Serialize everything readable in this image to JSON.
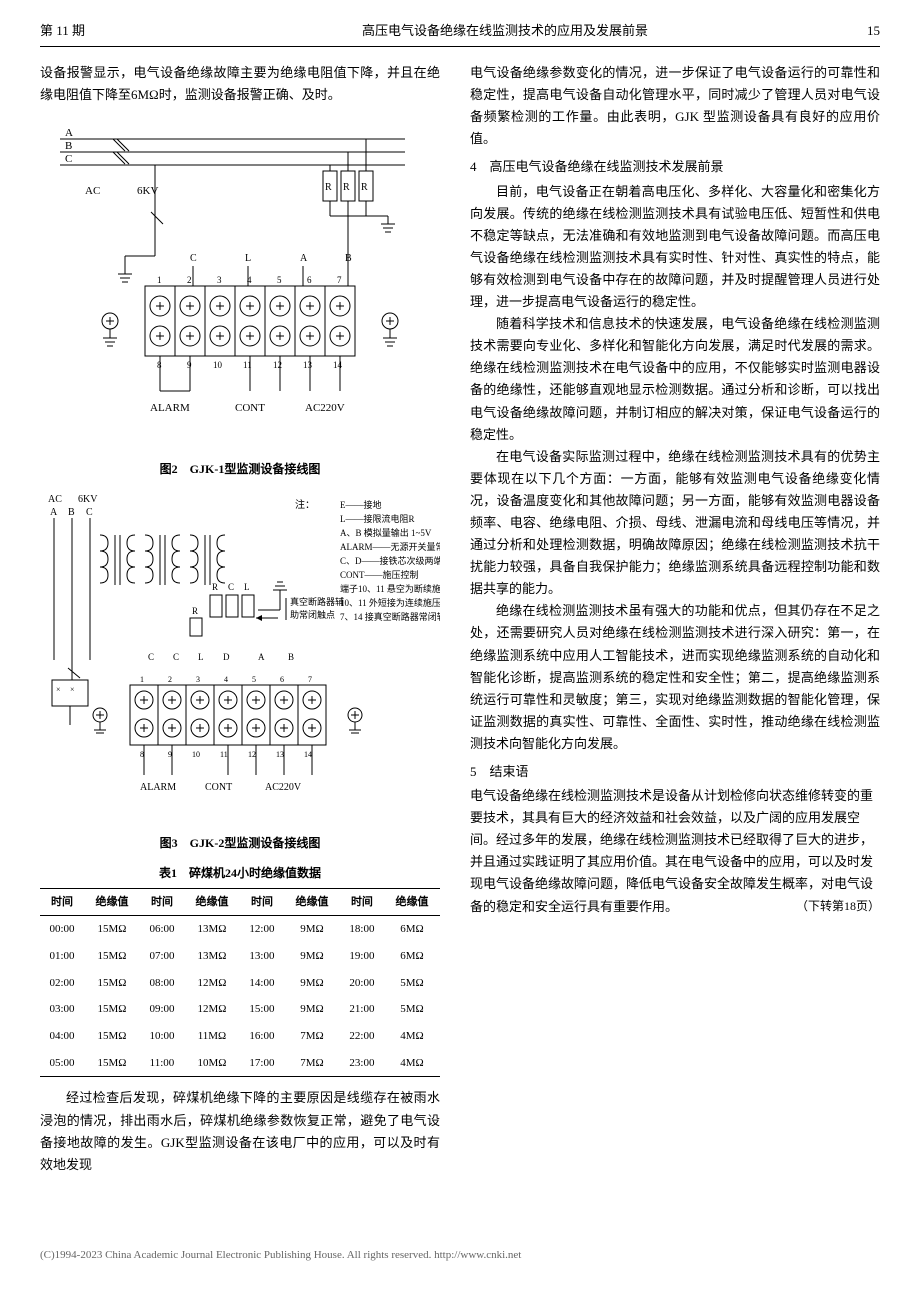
{
  "header": {
    "issue": "第 11 期",
    "title": "高压电气设备绝缘在线监测技术的应用及发展前景",
    "page": "15"
  },
  "left": {
    "intro_para": "设备报警显示，电气设备绝缘故障主要为绝缘电阻值下降，并且在绝缘电阻值下降至6MΩ时，监测设备报警正确、及时。",
    "fig2_caption": "图2　GJK-1型监测设备接线图",
    "fig3_caption": "图3　GJK-2型监测设备接线图",
    "table1_caption": "表1　碎煤机24小时绝缘值数据",
    "conclusion_para": "经过检查后发现，碎煤机绝缘下降的主要原因是线缆存在被雨水浸泡的情况，排出雨水后，碎煤机绝缘参数恢复正常，避免了电气设备接地故障的发生。GJK型监测设备在该电厂中的应用，可以及时有效地发现",
    "fig2": {
      "labels": {
        "A": "A",
        "B": "B",
        "C": "C",
        "AC": "AC",
        "voltage": "6KV",
        "R": "R",
        "CLAB": [
          "C",
          "L",
          "A",
          "B"
        ],
        "nums": [
          "1",
          "2",
          "3",
          "4",
          "5",
          "6",
          "7",
          "8",
          "9",
          "10",
          "11",
          "12",
          "13",
          "14"
        ],
        "alarm": "ALARM",
        "cont": "CONT",
        "ac220v": "AC220V"
      }
    },
    "fig3": {
      "top_labels": [
        "AC",
        "6KV",
        "A",
        "B",
        "C"
      ],
      "note_head": "注：",
      "notes": [
        "E——接地",
        "L——接限流电阻R",
        "A、B 模拟量输出 1~5V",
        "ALARM——无源开关量常开触点",
        "C、D——接铁芯次级两端",
        "CONT——施压控制",
        "端子10、11 悬空为断续施压",
        "10、11 外短接为连续施压",
        "7、14 接真空断路器常闭辅助触点"
      ],
      "vacuum": "真空断路器辅",
      "aux": "助常闭触点",
      "rcl": [
        "R",
        "C",
        "L"
      ],
      "ccldab": [
        "C",
        "C",
        "L",
        "D",
        "A",
        "B"
      ],
      "nums": [
        "1",
        "2",
        "3",
        "4",
        "5",
        "6",
        "7",
        "8",
        "9",
        "10",
        "11",
        "12",
        "13",
        "14"
      ],
      "alarm": "ALARM",
      "cont": "CONT",
      "ac220v": "AC220V"
    },
    "table1": {
      "headers": [
        "时间",
        "绝缘值",
        "时间",
        "绝缘值",
        "时间",
        "绝缘值",
        "时间",
        "绝缘值"
      ],
      "rows": [
        [
          "00:00",
          "15MΩ",
          "06:00",
          "13MΩ",
          "12:00",
          "9MΩ",
          "18:00",
          "6MΩ"
        ],
        [
          "01:00",
          "15MΩ",
          "07:00",
          "13MΩ",
          "13:00",
          "9MΩ",
          "19:00",
          "6MΩ"
        ],
        [
          "02:00",
          "15MΩ",
          "08:00",
          "12MΩ",
          "14:00",
          "9MΩ",
          "20:00",
          "5MΩ"
        ],
        [
          "03:00",
          "15MΩ",
          "09:00",
          "12MΩ",
          "15:00",
          "9MΩ",
          "21:00",
          "5MΩ"
        ],
        [
          "04:00",
          "15MΩ",
          "10:00",
          "11MΩ",
          "16:00",
          "7MΩ",
          "22:00",
          "4MΩ"
        ],
        [
          "05:00",
          "15MΩ",
          "11:00",
          "10MΩ",
          "17:00",
          "7MΩ",
          "23:00",
          "4MΩ"
        ]
      ]
    }
  },
  "right": {
    "para1": "电气设备绝缘参数变化的情况，进一步保证了电气设备运行的可靠性和稳定性，提高电气设备自动化管理水平，同时减少了管理人员对电气设备频繁检测的工作量。由此表明，GJK 型监测设备具有良好的应用价值。",
    "sec4": "4　高压电气设备绝缘在线监测技术发展前景",
    "para2": "目前，电气设备正在朝着高电压化、多样化、大容量化和密集化方向发展。传统的绝缘在线检测监测技术具有试验电压低、短暂性和供电不稳定等缺点，无法准确和有效地监测到电气设备故障问题。而高压电气设备绝缘在线检测监测技术具有实时性、针对性、真实性的特点，能够有效检测到电气设备中存在的故障问题，并及时提醒管理人员进行处理，进一步提高电气设备运行的稳定性。",
    "para3": "随着科学技术和信息技术的快速发展，电气设备绝缘在线检测监测技术需要向专业化、多样化和智能化方向发展，满足时代发展的需求。绝缘在线检测监测技术在电气设备中的应用，不仅能够实时监测电器设备的绝缘性，还能够直观地显示检测数据。通过分析和诊断，可以找出电气设备绝缘故障问题，并制订相应的解决对策，保证电气设备运行的稳定性。",
    "para4": "在电气设备实际监测过程中，绝缘在线检测监测技术具有的优势主要体现在以下几个方面：一方面，能够有效监测电气设备绝缘变化情况，设备温度变化和其他故障问题；另一方面，能够有效监测电器设备频率、电容、绝缘电阻、介损、母线、泄漏电流和母线电压等情况，并通过分析和处理检测数据，明确故障原因；绝缘在线检测监测技术抗干扰能力较强，具备自我保护能力；绝缘监测系统具备远程控制功能和数据共享的能力。",
    "para5": "绝缘在线检测监测技术虽有强大的功能和优点，但其仍存在不足之处，还需要研究人员对绝缘在线检测监测技术进行深入研究：第一，在绝缘监测系统中应用人工智能技术，进而实现绝缘监测系统的自动化和智能化诊断，提高监测系统的稳定性和安全性；第二，提高绝缘监测系统运行可靠性和灵敏度；第三，实现对绝缘监测数据的智能化管理，保证监测数据的真实性、可靠性、全面性、实时性，推动绝缘在线检测监测技术向智能化方向发展。",
    "sec5": "5　结束语",
    "para6": "电气设备绝缘在线检测监测技术是设备从计划检修向状态维修转变的重要技术，其具有巨大的经济效益和社会效益，以及广阔的应用发展空间。经过多年的发展，绝缘在线检测监测技术已经取得了巨大的进步，并且通过实践证明了其应用价值。其在电气设备中的应用，可以及时发现电气设备绝缘故障问题，降低电气设备安全故障发生概率，对电气设备的稳定和安全运行具有重要作用。",
    "continue": "（下转第18页）"
  },
  "footer": "(C)1994-2023 China Academic Journal Electronic Publishing House. All rights reserved.    http://www.cnki.net"
}
